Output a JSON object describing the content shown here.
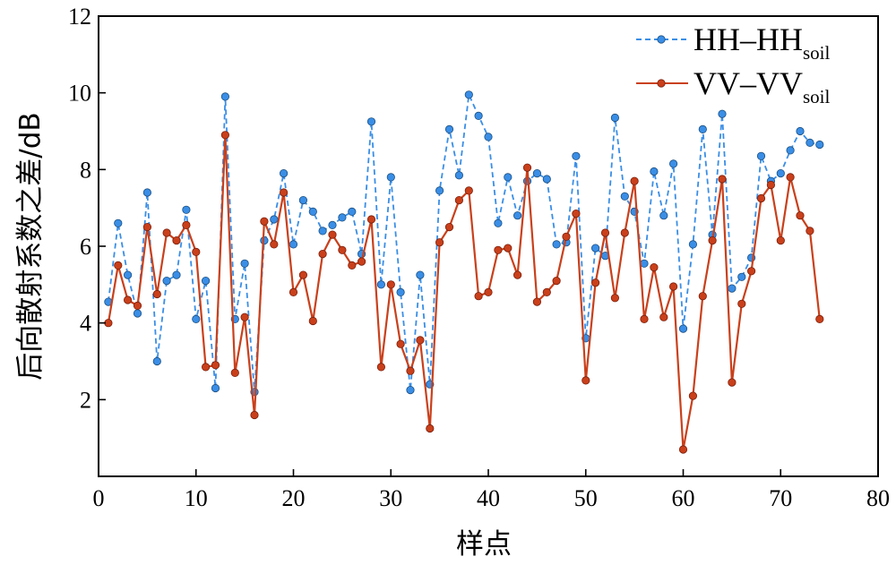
{
  "chart_data": {
    "type": "line",
    "xlabel": "样点",
    "ylabel": "后向散射系数之差/dB",
    "xlim": [
      0,
      80
    ],
    "ylim": [
      0,
      12
    ],
    "xticks": [
      0,
      10,
      20,
      30,
      40,
      50,
      60,
      70,
      80
    ],
    "yticks": [
      0,
      2,
      4,
      6,
      8,
      10,
      12
    ],
    "xtick_labels": [
      "0",
      "10",
      "20",
      "30",
      "40",
      "50",
      "60",
      "70",
      "80"
    ],
    "ytick_labels": [
      "",
      "2",
      "4",
      "6",
      "8",
      "10",
      "12"
    ],
    "grid": false,
    "legend_position": "top-right",
    "series": [
      {
        "name": "HH–HH",
        "name_subscript": "soil",
        "color": "#3a8ee6",
        "line_style": "dashed",
        "marker": "circle",
        "x": [
          1,
          2,
          3,
          4,
          5,
          6,
          7,
          8,
          9,
          10,
          11,
          12,
          13,
          14,
          15,
          16,
          17,
          18,
          19,
          20,
          21,
          22,
          23,
          24,
          25,
          26,
          27,
          28,
          29,
          30,
          31,
          32,
          33,
          34,
          35,
          36,
          37,
          38,
          39,
          40,
          41,
          42,
          43,
          44,
          45,
          46,
          47,
          48,
          49,
          50,
          51,
          52,
          53,
          54,
          55,
          56,
          57,
          58,
          59,
          60,
          61,
          62,
          63,
          64,
          65,
          66,
          67,
          68,
          69,
          70,
          71,
          72,
          73,
          74
        ],
        "values": [
          4.55,
          6.6,
          5.25,
          4.25,
          7.4,
          3.0,
          5.1,
          5.25,
          6.95,
          4.1,
          5.1,
          2.3,
          9.9,
          4.1,
          5.55,
          2.2,
          6.15,
          6.7,
          7.9,
          6.05,
          7.2,
          6.9,
          6.4,
          6.55,
          6.75,
          6.9,
          5.8,
          9.25,
          5.0,
          7.8,
          4.8,
          2.25,
          5.25,
          2.4,
          7.45,
          9.05,
          7.85,
          9.95,
          9.4,
          8.85,
          6.6,
          7.8,
          6.8,
          7.7,
          7.9,
          7.75,
          6.05,
          6.1,
          8.35,
          3.6,
          5.95,
          5.75,
          9.35,
          7.3,
          6.9,
          5.55,
          7.95,
          6.8,
          8.15,
          3.85,
          6.05,
          9.05,
          6.3,
          9.45,
          4.9,
          5.2,
          5.7,
          8.35,
          7.7,
          7.9,
          8.5,
          9.0,
          8.7,
          8.65
        ]
      },
      {
        "name": "VV–VV",
        "name_subscript": "soil",
        "color": "#c9401b",
        "line_style": "solid",
        "marker": "circle",
        "x": [
          1,
          2,
          3,
          4,
          5,
          6,
          7,
          8,
          9,
          10,
          11,
          12,
          13,
          14,
          15,
          16,
          17,
          18,
          19,
          20,
          21,
          22,
          23,
          24,
          25,
          26,
          27,
          28,
          29,
          30,
          31,
          32,
          33,
          34,
          35,
          36,
          37,
          38,
          39,
          40,
          41,
          42,
          43,
          44,
          45,
          46,
          47,
          48,
          49,
          50,
          51,
          52,
          53,
          54,
          55,
          56,
          57,
          58,
          59,
          60,
          61,
          62,
          63,
          64,
          65,
          66,
          67,
          68,
          69,
          70,
          71,
          72,
          73,
          74
        ],
        "values": [
          4.0,
          5.5,
          4.6,
          4.45,
          6.5,
          4.75,
          6.35,
          6.15,
          6.55,
          5.85,
          2.85,
          2.9,
          8.9,
          2.7,
          4.15,
          1.6,
          6.65,
          6.05,
          7.4,
          4.8,
          5.25,
          4.05,
          5.8,
          6.3,
          5.9,
          5.5,
          5.6,
          6.7,
          2.85,
          5.0,
          3.45,
          2.75,
          3.55,
          1.25,
          6.1,
          6.5,
          7.2,
          7.45,
          4.7,
          4.8,
          5.9,
          5.95,
          5.25,
          8.05,
          4.55,
          4.8,
          5.1,
          6.25,
          6.85,
          2.5,
          5.05,
          6.35,
          4.65,
          6.35,
          7.7,
          4.1,
          5.45,
          4.15,
          4.95,
          0.7,
          2.1,
          4.7,
          6.15,
          7.75,
          2.45,
          4.5,
          5.35,
          7.25,
          7.6,
          6.15,
          7.8,
          6.8,
          6.4,
          4.1
        ]
      }
    ]
  }
}
